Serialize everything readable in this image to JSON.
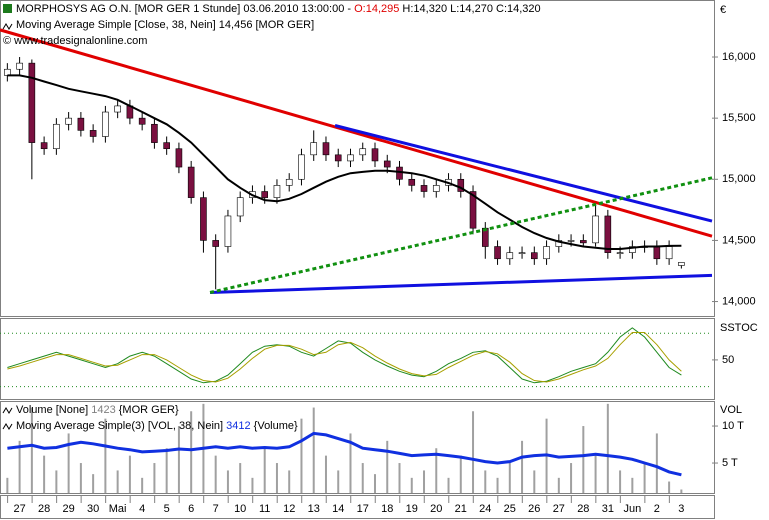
{
  "header": {
    "title": "MORPHOSYS AG O.N. [MOR GER  1 Stunde] 03.06.2010 13:00:00 - ",
    "open": "O:14,295",
    "rest": " H:14,320 L:14,270 C:14,320",
    "indicator": "Moving Average Simple [Close, 38, Nein] 14,456 [MOR GER]",
    "source": "© www.tradesignalonline.com"
  },
  "x_axis": {
    "xlim": [
      -1.6,
      56.5
    ],
    "x": [
      -1,
      0,
      1,
      2,
      3,
      4,
      5,
      6,
      7,
      8,
      9,
      10,
      11,
      12,
      13,
      14,
      15,
      16,
      17,
      18,
      19,
      20,
      21,
      22,
      23,
      24,
      25,
      26,
      27,
      28,
      29,
      30,
      31,
      32,
      33,
      34,
      35,
      36,
      37,
      38,
      39,
      40,
      41,
      42,
      43,
      44,
      45,
      46,
      47,
      48,
      49,
      50,
      51,
      52,
      53,
      54
    ],
    "xticks": [
      {
        "value": 0,
        "label": "27"
      },
      {
        "value": 2,
        "label": "28"
      },
      {
        "value": 4,
        "label": "29"
      },
      {
        "value": 6,
        "label": "30"
      },
      {
        "value": 8,
        "label": "Mai"
      },
      {
        "value": 10,
        "label": "4"
      },
      {
        "value": 12,
        "label": "5"
      },
      {
        "value": 14,
        "label": "6"
      },
      {
        "value": 16,
        "label": "7"
      },
      {
        "value": 18,
        "label": "10"
      },
      {
        "value": 20,
        "label": "11"
      },
      {
        "value": 22,
        "label": "12"
      },
      {
        "value": 24,
        "label": "13"
      },
      {
        "value": 26,
        "label": "14"
      },
      {
        "value": 28,
        "label": "17"
      },
      {
        "value": 30,
        "label": "18"
      },
      {
        "value": 32,
        "label": "19"
      },
      {
        "value": 34,
        "label": "20"
      },
      {
        "value": 36,
        "label": "21"
      },
      {
        "value": 38,
        "label": "24"
      },
      {
        "value": 40,
        "label": "25"
      },
      {
        "value": 42,
        "label": "26"
      },
      {
        "value": 44,
        "label": "27"
      },
      {
        "value": 46,
        "label": "28"
      },
      {
        "value": 48,
        "label": "31"
      },
      {
        "value": 50,
        "label": "Jun"
      },
      {
        "value": 52,
        "label": "2"
      },
      {
        "value": 54,
        "label": "3"
      }
    ]
  },
  "chart_data": [
    {
      "type": "candlestick",
      "y_label": "€",
      "ylim": [
        13890,
        16450
      ],
      "yticks": [
        {
          "value": 16000,
          "label": "16,000"
        },
        {
          "value": 15500,
          "label": "15,500"
        },
        {
          "value": 15000,
          "label": "15,000"
        },
        {
          "value": 14500,
          "label": "14,500"
        },
        {
          "value": 14000,
          "label": "14,000"
        }
      ],
      "up_color": "#ffffff",
      "down_color": "#7a1040",
      "open": [
        15850,
        15900,
        15950,
        15300,
        15250,
        15450,
        15500,
        15400,
        15350,
        15550,
        15600,
        15500,
        15450,
        15300,
        15250,
        15100,
        14850,
        14500,
        14450,
        14700,
        14850,
        14900,
        14850,
        14950,
        15000,
        15200,
        15300,
        15200,
        15150,
        15200,
        15250,
        15150,
        15100,
        15000,
        14950,
        14900,
        14950,
        15000,
        14900,
        14600,
        14450,
        14350,
        14400,
        14400,
        14350,
        14450,
        14500,
        14500,
        14480,
        14700,
        14400,
        14400,
        14450,
        14450,
        14350,
        14295
      ],
      "high": [
        15950,
        16000,
        15980,
        15350,
        15500,
        15550,
        15550,
        15450,
        15600,
        15650,
        15650,
        15550,
        15500,
        15350,
        15300,
        15150,
        14900,
        14550,
        14750,
        14900,
        14950,
        14950,
        15000,
        15050,
        15250,
        15400,
        15350,
        15250,
        15250,
        15300,
        15300,
        15200,
        15150,
        15050,
        15000,
        15000,
        15050,
        15050,
        14950,
        14650,
        14500,
        14450,
        14450,
        14450,
        14500,
        14550,
        14550,
        14550,
        14800,
        14750,
        14450,
        14500,
        14500,
        14500,
        14500,
        14320
      ],
      "low": [
        15800,
        15850,
        15000,
        15200,
        15200,
        15400,
        15350,
        15300,
        15300,
        15500,
        15450,
        15400,
        15250,
        15200,
        15050,
        14800,
        14400,
        14100,
        14400,
        14650,
        14800,
        14800,
        14800,
        14900,
        14950,
        15150,
        15150,
        15100,
        15100,
        15150,
        15100,
        15050,
        14950,
        14900,
        14850,
        14850,
        14900,
        14850,
        14550,
        14350,
        14300,
        14300,
        14350,
        14300,
        14300,
        14400,
        14450,
        14450,
        14450,
        14350,
        14350,
        14350,
        14400,
        14300,
        14300,
        14270
      ],
      "close": [
        15900,
        15950,
        15300,
        15250,
        15450,
        15500,
        15400,
        15350,
        15550,
        15600,
        15500,
        15450,
        15300,
        15250,
        15100,
        14850,
        14500,
        14450,
        14700,
        14850,
        14900,
        14850,
        14950,
        15000,
        15200,
        15300,
        15200,
        15150,
        15200,
        15250,
        15150,
        15100,
        15000,
        14950,
        14900,
        14950,
        15000,
        14900,
        14600,
        14450,
        14350,
        14400,
        14400,
        14350,
        14450,
        14500,
        14500,
        14480,
        14700,
        14400,
        14400,
        14450,
        14450,
        14350,
        14450,
        14320
      ],
      "series": [
        {
          "color": "#000000",
          "values": [
            15850,
            15850,
            15830,
            15800,
            15770,
            15740,
            15720,
            15700,
            15680,
            15650,
            15600,
            15550,
            15500,
            15450,
            15380,
            15300,
            15200,
            15100,
            15000,
            14930,
            14870,
            14830,
            14820,
            14840,
            14880,
            14930,
            14980,
            15020,
            15050,
            15060,
            15070,
            15070,
            15060,
            15050,
            15030,
            15000,
            14970,
            14930,
            14870,
            14800,
            14730,
            14670,
            14610,
            14560,
            14520,
            14490,
            14470,
            14450,
            14440,
            14430,
            14430,
            14440,
            14450,
            14450,
            14455,
            14456
          ]
        }
      ],
      "lines": [
        {
          "color": "#e00000",
          "dashed": false,
          "x": [
            -1.6,
            56.5
          ],
          "y": [
            16222,
            14535
          ]
        },
        {
          "color": "#1010e0",
          "dashed": false,
          "x": [
            25.74,
            56.5
          ],
          "y": [
            15440,
            14658
          ]
        },
        {
          "color": "#1010e0",
          "dashed": false,
          "x": [
            15.54,
            56.5
          ],
          "y": [
            14074,
            14214
          ]
        },
        {
          "color": "#109010",
          "dashed": true,
          "x": [
            15.54,
            56.5
          ],
          "y": [
            14074,
            15012
          ]
        }
      ]
    },
    {
      "type": "line",
      "y_label": "SSTOC",
      "ylim": [
        0,
        105
      ],
      "yticks": [
        50
      ],
      "levels": [
        85,
        15
      ],
      "series": [
        {
          "color": "#1f8a1f",
          "values": [
            40,
            45,
            50,
            55,
            60,
            55,
            50,
            45,
            40,
            45,
            55,
            60,
            55,
            45,
            35,
            25,
            20,
            22,
            30,
            45,
            60,
            68,
            70,
            68,
            60,
            55,
            65,
            75,
            72,
            60,
            50,
            42,
            35,
            30,
            28,
            35,
            45,
            52,
            60,
            62,
            55,
            40,
            25,
            20,
            22,
            28,
            35,
            40,
            45,
            60,
            80,
            92,
            80,
            60,
            40,
            30
          ]
        },
        {
          "color": "#a8a000",
          "values": [
            38,
            42,
            47,
            52,
            57,
            57,
            52,
            47,
            42,
            43,
            50,
            57,
            57,
            50,
            40,
            30,
            23,
            21,
            26,
            38,
            52,
            64,
            69,
            69,
            64,
            57,
            60,
            70,
            73,
            66,
            55,
            46,
            38,
            32,
            29,
            31,
            40,
            48,
            56,
            61,
            58,
            47,
            32,
            23,
            21,
            25,
            31,
            37,
            42,
            52,
            70,
            86,
            86,
            70,
            50,
            35
          ]
        }
      ]
    },
    {
      "type": "bar",
      "y_label": "VOL",
      "ylim": [
        950,
        13250
      ],
      "yticks": [
        {
          "value": 10000,
          "label": "10 T"
        },
        {
          "value": 5000,
          "label": "5 T"
        }
      ],
      "legend": {
        "volume": "Volume [None] ",
        "volume_value": "1423",
        "volume_tail": " {MOR GER}",
        "ma": "Moving Average Simple(3) [VOL, 38, Nein] ",
        "ma_value": "3412",
        "ma_tail": " {Volume}"
      },
      "color": "#a0a0a0",
      "values": [
        3000,
        8000,
        12500,
        6000,
        4000,
        9000,
        5000,
        3500,
        11000,
        4000,
        6000,
        3000,
        5000,
        7000,
        10000,
        12000,
        13000,
        6000,
        4000,
        5000,
        3000,
        7000,
        5000,
        4000,
        11000,
        12500,
        6000,
        4000,
        9000,
        5000,
        3500,
        8000,
        5000,
        3000,
        4000,
        7000,
        3000,
        6000,
        12000,
        4000,
        3000,
        5000,
        8000,
        4000,
        11000,
        3000,
        5000,
        10000,
        6000,
        13000,
        4000,
        3000,
        5000,
        9000,
        2500,
        1423
      ],
      "series": [
        {
          "color": "#1030e0",
          "values": [
            7000,
            7200,
            7400,
            7000,
            7100,
            7500,
            7800,
            7600,
            7300,
            7000,
            6800,
            6500,
            6600,
            6700,
            6900,
            6800,
            7000,
            7200,
            7000,
            7200,
            7000,
            7100,
            7000,
            7200,
            8000,
            9000,
            8800,
            8300,
            7800,
            7000,
            6800,
            6600,
            6300,
            6000,
            6100,
            6200,
            6000,
            5800,
            5500,
            5200,
            5000,
            5200,
            5800,
            6000,
            6100,
            5800,
            5900,
            6000,
            6200,
            6000,
            5800,
            5500,
            5000,
            4500,
            3800,
            3412
          ]
        }
      ]
    }
  ]
}
